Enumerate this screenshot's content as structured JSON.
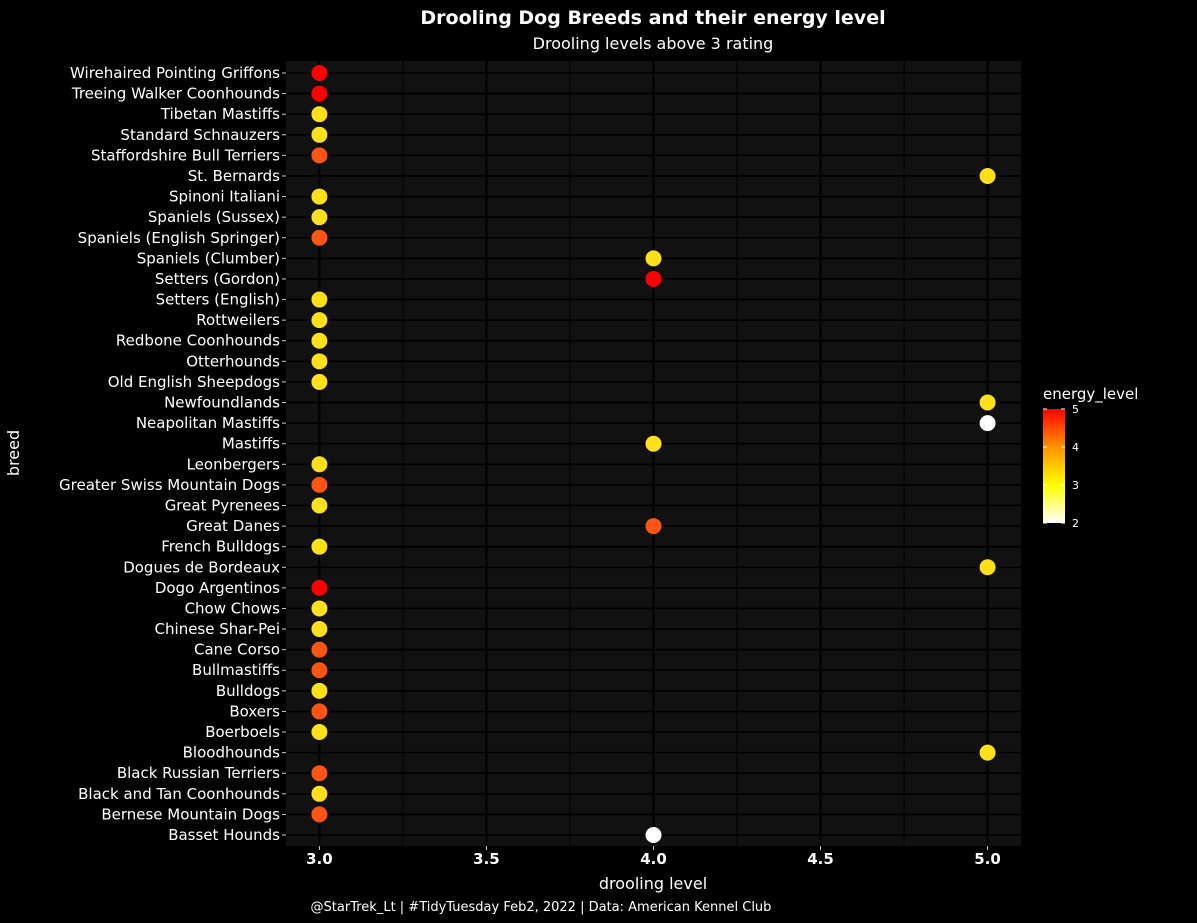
{
  "chart_data": {
    "type": "scatter",
    "title": "Drooling Dog Breeds and their energy level",
    "subtitle": "Drooling levels above 3 rating",
    "xlabel": "drooling level",
    "ylabel": "breed",
    "caption": "@StarTrek_Lt | #TidyTuesday Feb2, 2022 | Data: American Kennel Club",
    "xlim": [
      2.9,
      5.1
    ],
    "xticks": [
      "3.0",
      "3.5",
      "4.0",
      "4.5",
      "5.0"
    ],
    "grid": true,
    "legend": {
      "title": "energy_level",
      "position": "right",
      "range": [
        2,
        5
      ],
      "ticks": [
        "5",
        "4",
        "3",
        "2"
      ],
      "gradient": [
        "#ffffff",
        "#ffff00",
        "#ff9500",
        "#ff0000"
      ]
    },
    "points": [
      {
        "breed": "Wirehaired Pointing Griffons",
        "drooling": 3,
        "energy": 5
      },
      {
        "breed": "Treeing Walker Coonhounds",
        "drooling": 3,
        "energy": 5
      },
      {
        "breed": "Tibetan Mastiffs",
        "drooling": 3,
        "energy": 3
      },
      {
        "breed": "Standard Schnauzers",
        "drooling": 3,
        "energy": 3
      },
      {
        "breed": "Staffordshire Bull Terriers",
        "drooling": 3,
        "energy": 4
      },
      {
        "breed": "St. Bernards",
        "drooling": 5,
        "energy": 3
      },
      {
        "breed": "Spinoni Italiani",
        "drooling": 3,
        "energy": 3
      },
      {
        "breed": "Spaniels (Sussex)",
        "drooling": 3,
        "energy": 3
      },
      {
        "breed": "Spaniels (English Springer)",
        "drooling": 3,
        "energy": 4
      },
      {
        "breed": "Spaniels (Clumber)",
        "drooling": 4,
        "energy": 3
      },
      {
        "breed": "Setters (Gordon)",
        "drooling": 4,
        "energy": 5
      },
      {
        "breed": "Setters (English)",
        "drooling": 3,
        "energy": 3
      },
      {
        "breed": "Rottweilers",
        "drooling": 3,
        "energy": 3
      },
      {
        "breed": "Redbone Coonhounds",
        "drooling": 3,
        "energy": 3
      },
      {
        "breed": "Otterhounds",
        "drooling": 3,
        "energy": 3
      },
      {
        "breed": "Old English Sheepdogs",
        "drooling": 3,
        "energy": 3
      },
      {
        "breed": "Newfoundlands",
        "drooling": 5,
        "energy": 3
      },
      {
        "breed": "Neapolitan Mastiffs",
        "drooling": 5,
        "energy": 2
      },
      {
        "breed": "Mastiffs",
        "drooling": 4,
        "energy": 3
      },
      {
        "breed": "Leonbergers",
        "drooling": 3,
        "energy": 3
      },
      {
        "breed": "Greater Swiss Mountain Dogs",
        "drooling": 3,
        "energy": 4
      },
      {
        "breed": "Great Pyrenees",
        "drooling": 3,
        "energy": 3
      },
      {
        "breed": "Great Danes",
        "drooling": 4,
        "energy": 4
      },
      {
        "breed": "French Bulldogs",
        "drooling": 3,
        "energy": 3
      },
      {
        "breed": "Dogues de Bordeaux",
        "drooling": 5,
        "energy": 3
      },
      {
        "breed": "Dogo Argentinos",
        "drooling": 3,
        "energy": 5
      },
      {
        "breed": "Chow Chows",
        "drooling": 3,
        "energy": 3
      },
      {
        "breed": "Chinese Shar-Pei",
        "drooling": 3,
        "energy": 3
      },
      {
        "breed": "Cane Corso",
        "drooling": 3,
        "energy": 4
      },
      {
        "breed": "Bullmastiffs",
        "drooling": 3,
        "energy": 4
      },
      {
        "breed": "Bulldogs",
        "drooling": 3,
        "energy": 3
      },
      {
        "breed": "Boxers",
        "drooling": 3,
        "energy": 4
      },
      {
        "breed": "Boerboels",
        "drooling": 3,
        "energy": 3
      },
      {
        "breed": "Bloodhounds",
        "drooling": 5,
        "energy": 3
      },
      {
        "breed": "Black Russian Terriers",
        "drooling": 3,
        "energy": 4
      },
      {
        "breed": "Black and Tan Coonhounds",
        "drooling": 3,
        "energy": 3
      },
      {
        "breed": "Bernese Mountain Dogs",
        "drooling": 3,
        "energy": 4
      },
      {
        "breed": "Basset Hounds",
        "drooling": 4,
        "energy": 2
      }
    ]
  }
}
